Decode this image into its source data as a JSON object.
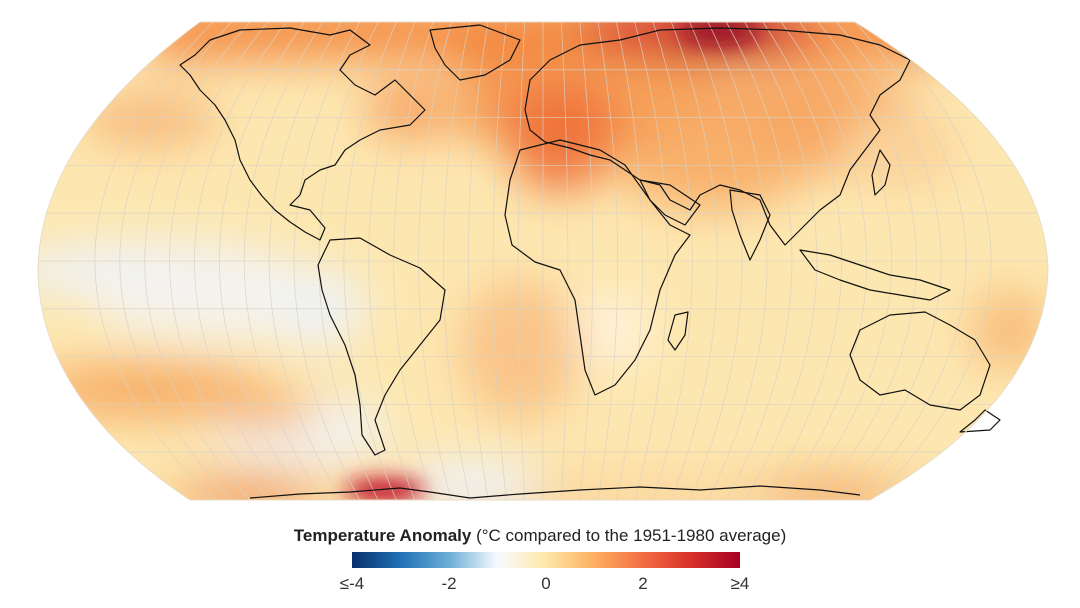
{
  "legend": {
    "title_bold": "Temperature Anomaly",
    "title_rest": " (°C compared to the 1951-1980 average)",
    "ticks": [
      {
        "label": "≤-4",
        "value": -4
      },
      {
        "label": "-2",
        "value": -2
      },
      {
        "label": "0",
        "value": 0
      },
      {
        "label": "2",
        "value": 2
      },
      {
        "label": "≥4",
        "value": 4
      }
    ],
    "range": [
      -4,
      4
    ],
    "colors": [
      "#08306b",
      "#2171b5",
      "#6baed6",
      "#f7fbff",
      "#fee8a8",
      "#fdae61",
      "#f46d43",
      "#d73027",
      "#a50026"
    ]
  },
  "map": {
    "projection": "robinson",
    "ocean_base_color": "#fdeab8",
    "coastline_color": "#111111",
    "graticule_color": "#d8cfc0"
  }
}
